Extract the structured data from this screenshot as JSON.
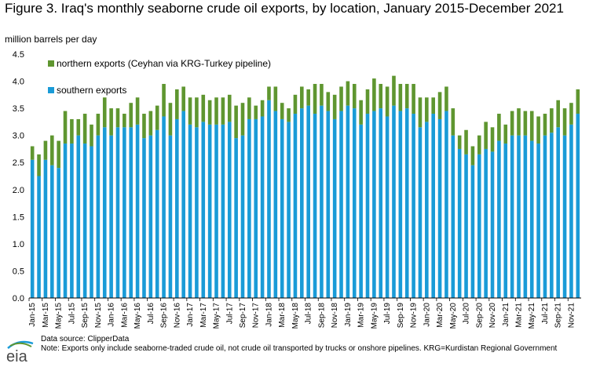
{
  "title": "Figure 3. Iraq's monthly seaborne crude oil exports, by location, January 2015-December 2021",
  "ylabel": "million barrels per day",
  "source": "Data source: ClipperData",
  "note": "Note: Exports only include seaborne-traded crude oil, not crude oil transported by trucks or onshore pipelines. KRG=Kurdistan Regional Government",
  "logo_text": "eia",
  "colors": {
    "southern": "#1a9bd7",
    "northern": "#5f9630",
    "axis": "#000000"
  },
  "chart_data": {
    "type": "bar",
    "stacked": true,
    "ylim": [
      0,
      4.5
    ],
    "yticks": [
      "0.0",
      "0.5",
      "1.0",
      "1.5",
      "2.0",
      "2.5",
      "3.0",
      "3.5",
      "4.0",
      "4.5"
    ],
    "legend_position": "top-left",
    "x": [
      "Jan-15",
      "Feb-15",
      "Mar-15",
      "Apr-15",
      "May-15",
      "Jun-15",
      "Jul-15",
      "Aug-15",
      "Sep-15",
      "Oct-15",
      "Nov-15",
      "Dec-15",
      "Jan-16",
      "Feb-16",
      "Mar-16",
      "Apr-16",
      "May-16",
      "Jun-16",
      "Jul-16",
      "Aug-16",
      "Sep-16",
      "Oct-16",
      "Nov-16",
      "Dec-16",
      "Jan-17",
      "Feb-17",
      "Mar-17",
      "Apr-17",
      "May-17",
      "Jun-17",
      "Jul-17",
      "Aug-17",
      "Sep-17",
      "Oct-17",
      "Nov-17",
      "Dec-17",
      "Jan-18",
      "Feb-18",
      "Mar-18",
      "Apr-18",
      "May-18",
      "Jun-18",
      "Jul-18",
      "Aug-18",
      "Sep-18",
      "Oct-18",
      "Nov-18",
      "Dec-18",
      "Jan-19",
      "Feb-19",
      "Mar-19",
      "Apr-19",
      "May-19",
      "Jun-19",
      "Jul-19",
      "Aug-19",
      "Sep-19",
      "Oct-19",
      "Nov-19",
      "Dec-19",
      "Jan-20",
      "Feb-20",
      "Mar-20",
      "Apr-20",
      "May-20",
      "Jun-20",
      "Jul-20",
      "Aug-20",
      "Sep-20",
      "Oct-20",
      "Nov-20",
      "Dec-20",
      "Jan-21",
      "Feb-21",
      "Mar-21",
      "Apr-21",
      "May-21",
      "Jun-21",
      "Jul-21",
      "Aug-21",
      "Sep-21",
      "Oct-21",
      "Nov-21",
      "Dec-21"
    ],
    "tick_labels": [
      "Jan-15",
      "Mar-15",
      "May-15",
      "Jul-15",
      "Sep-15",
      "Nov-15",
      "Jan-16",
      "Mar-16",
      "May-16",
      "Jul-16",
      "Sep-16",
      "Nov-16",
      "Jan-17",
      "Mar-17",
      "May-17",
      "Jul-17",
      "Sep-17",
      "Nov-17",
      "Jan-18",
      "Mar-18",
      "May-18",
      "Jul-18",
      "Sep-18",
      "Nov-18",
      "Jan-19",
      "Mar-19",
      "May-19",
      "Jul-19",
      "Sep-19",
      "Nov-19",
      "Jan-20",
      "Mar-20",
      "May-20",
      "Jul-20",
      "Sep-20",
      "Nov-20",
      "Jan-21",
      "Mar-21",
      "May-21",
      "Jul-21",
      "Sep-21",
      "Nov-21"
    ],
    "series": [
      {
        "name": "southern exports",
        "values": [
          2.55,
          2.25,
          2.55,
          2.45,
          2.4,
          2.85,
          2.85,
          3.0,
          2.85,
          2.8,
          3.0,
          3.15,
          3.0,
          3.15,
          3.15,
          3.15,
          3.2,
          2.95,
          3.0,
          3.1,
          3.35,
          3.0,
          3.3,
          3.45,
          3.2,
          3.15,
          3.25,
          3.2,
          3.2,
          3.2,
          3.25,
          2.95,
          3.0,
          3.3,
          3.3,
          3.35,
          3.65,
          3.45,
          3.3,
          3.25,
          3.4,
          3.5,
          3.55,
          3.4,
          3.55,
          3.45,
          3.3,
          3.45,
          3.55,
          3.5,
          3.2,
          3.4,
          3.45,
          3.5,
          3.35,
          3.55,
          3.45,
          3.5,
          3.4,
          3.15,
          3.25,
          3.4,
          3.3,
          3.45,
          3.0,
          2.75,
          2.65,
          2.45,
          2.65,
          2.75,
          2.7,
          2.9,
          2.85,
          3.0,
          3.0,
          3.0,
          2.9,
          2.85,
          3.0,
          3.05,
          3.15,
          3.0,
          3.2,
          3.4
        ]
      },
      {
        "name": "northern exports (Ceyhan via KRG-Turkey pipeline)",
        "values": [
          0.25,
          0.4,
          0.35,
          0.55,
          0.5,
          0.6,
          0.45,
          0.3,
          0.55,
          0.4,
          0.4,
          0.55,
          0.5,
          0.35,
          0.25,
          0.45,
          0.5,
          0.45,
          0.45,
          0.45,
          0.6,
          0.6,
          0.55,
          0.45,
          0.5,
          0.55,
          0.5,
          0.45,
          0.5,
          0.5,
          0.5,
          0.6,
          0.6,
          0.4,
          0.25,
          0.3,
          0.25,
          0.45,
          0.3,
          0.25,
          0.35,
          0.4,
          0.3,
          0.55,
          0.4,
          0.35,
          0.45,
          0.45,
          0.45,
          0.45,
          0.45,
          0.45,
          0.6,
          0.45,
          0.55,
          0.55,
          0.5,
          0.45,
          0.55,
          0.55,
          0.45,
          0.3,
          0.5,
          0.45,
          0.5,
          0.25,
          0.45,
          0.35,
          0.35,
          0.5,
          0.45,
          0.5,
          0.35,
          0.45,
          0.5,
          0.45,
          0.55,
          0.5,
          0.4,
          0.45,
          0.5,
          0.5,
          0.4,
          0.45
        ]
      }
    ]
  }
}
